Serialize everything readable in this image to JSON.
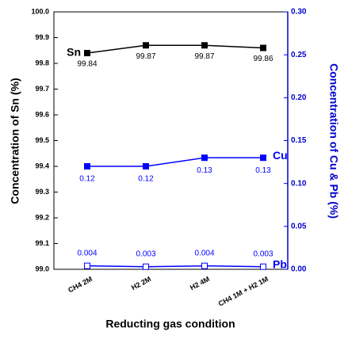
{
  "chart_data": {
    "type": "line",
    "xlabel": "Reducting gas condition",
    "ylabel": "Concentration of Sn (%)",
    "y2label": "Concentration of Cu & Pb (%)",
    "categories": [
      "CH4 2M",
      "H2 2M",
      "H2 4M",
      "CH4 1M + H2 1M"
    ],
    "ylim": [
      99.0,
      100.0
    ],
    "yticks": [
      {
        "value": 99.0,
        "label": "99.0"
      },
      99.1,
      99.2,
      99.3,
      99.4,
      99.5,
      99.6,
      99.7,
      99.8,
      99.9,
      {
        "value": 100.0,
        "label": "100.0"
      }
    ],
    "y2lim": [
      0.0,
      0.3
    ],
    "y2ticks": [
      {
        "value": 0.0,
        "label": "0.00"
      },
      {
        "value": 0.05,
        "label": "0.05"
      },
      {
        "value": 0.1,
        "label": "0.10"
      },
      {
        "value": 0.15,
        "label": "0.15"
      },
      {
        "value": 0.2,
        "label": "0.20"
      },
      {
        "value": 0.25,
        "label": "0.25"
      },
      {
        "value": 0.3,
        "label": "0.30"
      }
    ],
    "y2color": "#0000cc",
    "series": [
      {
        "name": "Sn",
        "color": "#000000",
        "marker": "filled",
        "values": [
          99.84,
          99.87,
          99.87,
          99.86
        ]
      },
      {
        "name": "Cu",
        "color": "#0000ff",
        "marker": "filled",
        "axis": "y2",
        "values": [
          0.12,
          0.12,
          0.13,
          0.13
        ]
      },
      {
        "name": "Pb",
        "color": "#0000ff",
        "marker": "open",
        "axis": "y2",
        "values": [
          0.004,
          0.003,
          0.004,
          0.003
        ]
      }
    ]
  }
}
